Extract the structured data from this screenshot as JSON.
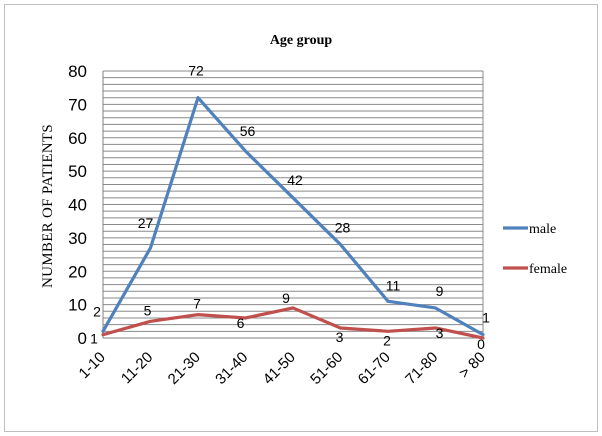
{
  "chart_data": {
    "type": "line",
    "title": "Age group",
    "xlabel": "",
    "ylabel": "NUMBER  OF PATIENTS",
    "categories": [
      "1-10",
      "11-20",
      "21-30",
      "31-40",
      "41-50",
      "51-60",
      "61-70",
      "71-80",
      "> 80"
    ],
    "ylim": [
      0,
      80
    ],
    "yticks": [
      0,
      10,
      20,
      30,
      40,
      50,
      60,
      70,
      80
    ],
    "grid": true,
    "legend_position": "right",
    "series": [
      {
        "name": "male",
        "color": "#4f81bd",
        "values": [
          2,
          27,
          72,
          56,
          42,
          28,
          11,
          9,
          1
        ]
      },
      {
        "name": "female",
        "color": "#c0504d",
        "values": [
          1,
          5,
          7,
          6,
          9,
          3,
          2,
          3,
          0
        ]
      }
    ]
  }
}
